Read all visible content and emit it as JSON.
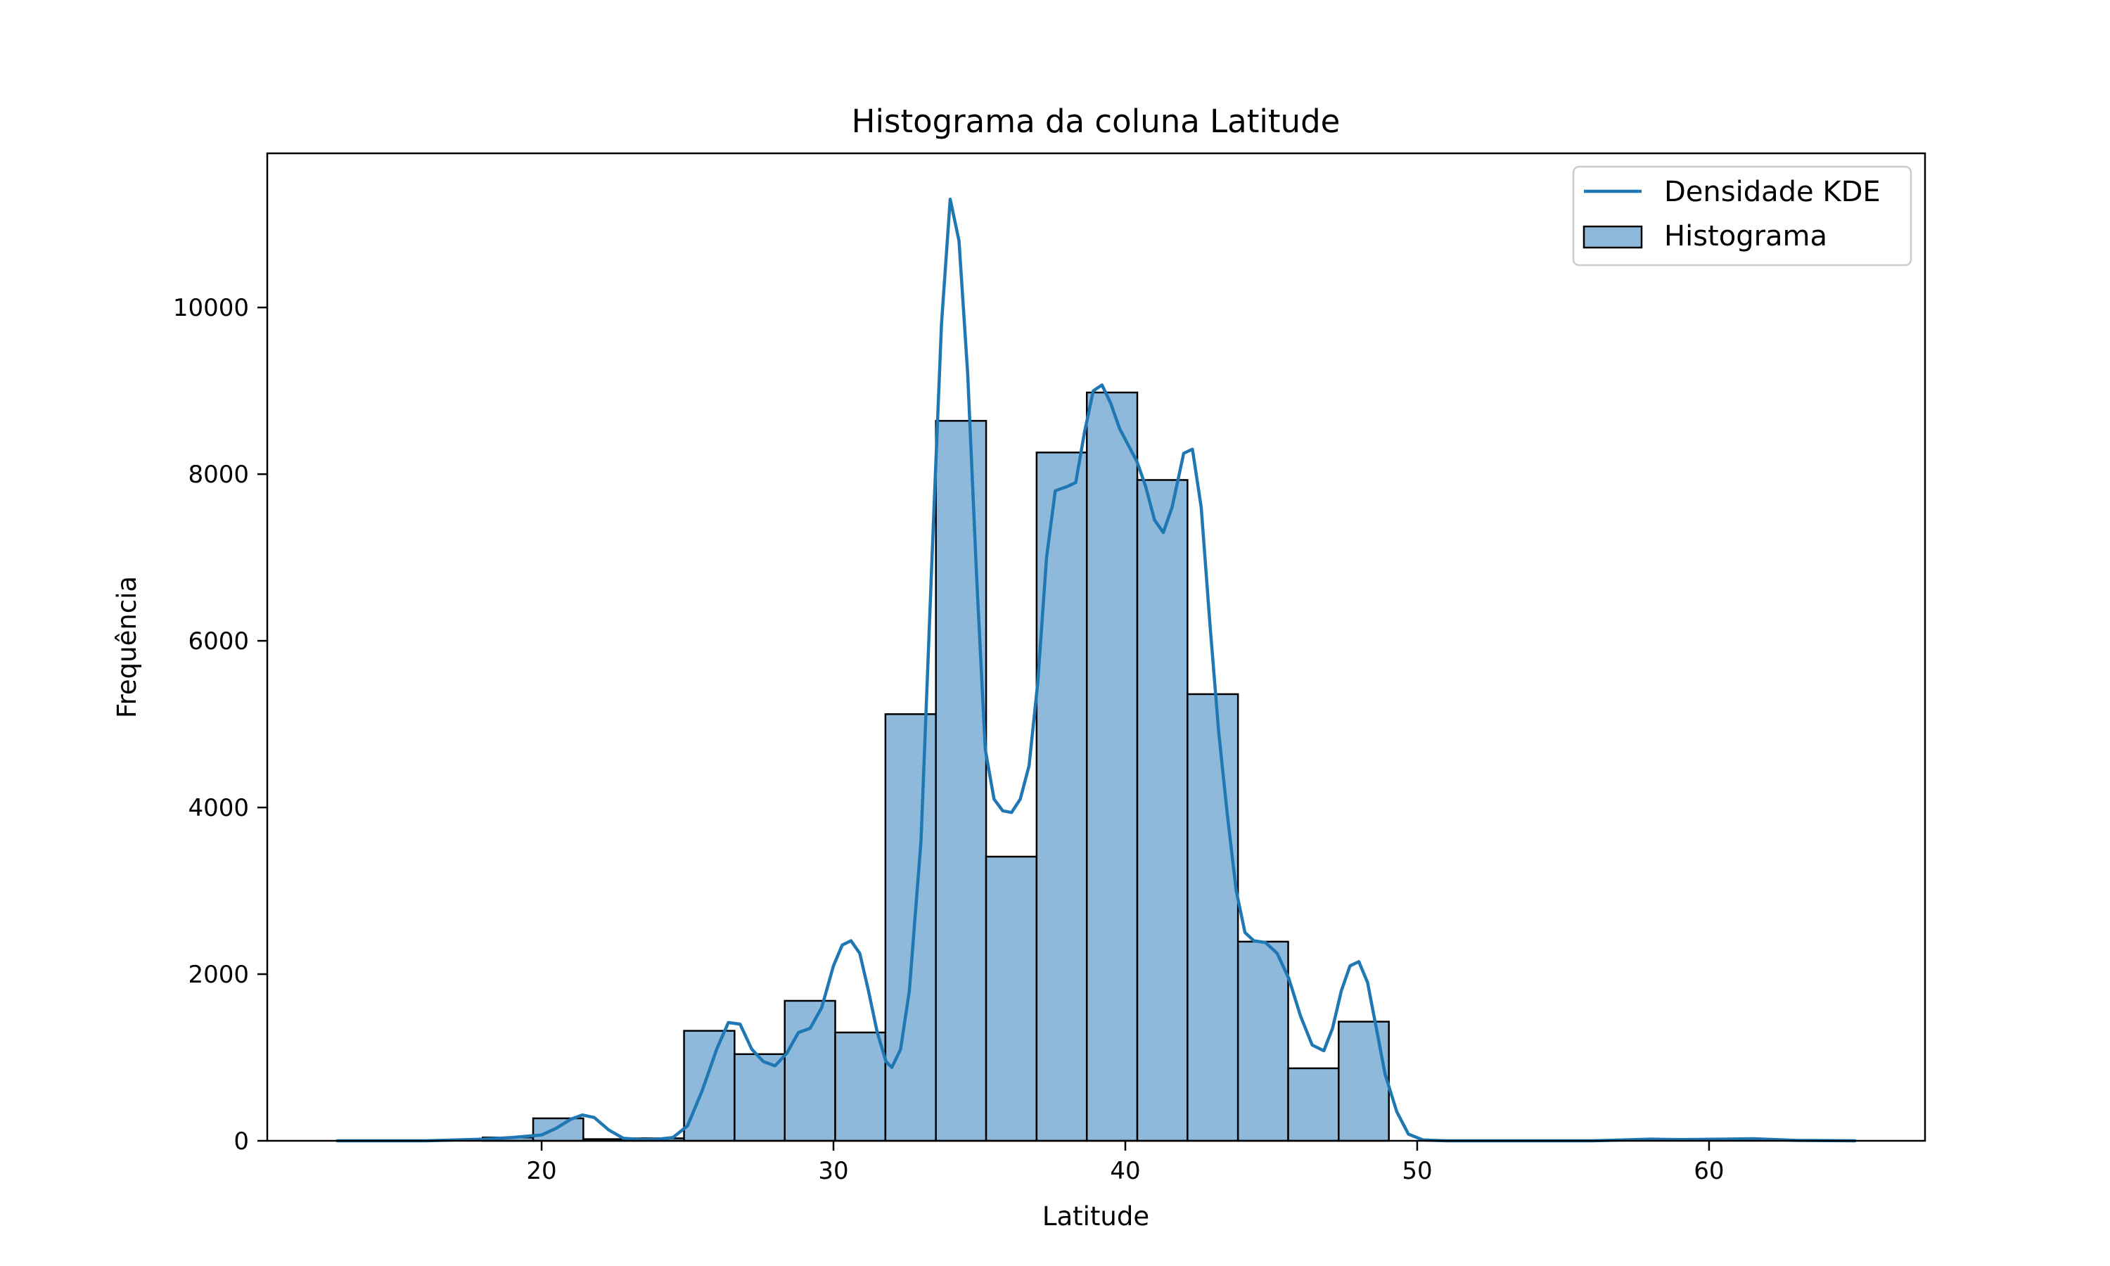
{
  "chart_data": {
    "type": "bar",
    "title": "Histograma da coluna Latitude",
    "xlabel": "Latitude",
    "ylabel": "Frequência",
    "xlim": [
      10.6,
      67.4
    ],
    "ylim": [
      0,
      11850
    ],
    "x_ticks": [
      20,
      30,
      40,
      50,
      60
    ],
    "y_ticks": [
      0,
      2000,
      4000,
      6000,
      8000,
      10000
    ],
    "grid": false,
    "legend_position": "top-right",
    "colors": {
      "bar_fill": "#8fb9db",
      "bar_edge": "#000000",
      "kde_line": "#1f77b4"
    },
    "series": [
      {
        "name": "Histograma",
        "type": "bar",
        "bin_edges": [
          17.98,
          19.71,
          21.43,
          23.16,
          24.88,
          26.61,
          28.33,
          30.06,
          31.78,
          33.51,
          35.23,
          36.96,
          38.68,
          40.41,
          42.13,
          43.86,
          45.58,
          47.31,
          49.03
        ],
        "values": [
          40,
          270,
          20,
          30,
          1320,
          1040,
          1680,
          1300,
          5120,
          8640,
          3410,
          8260,
          8980,
          7930,
          5360,
          2390,
          870,
          1430
        ]
      },
      {
        "name": "Densidade KDE",
        "type": "line",
        "points": [
          [
            13.0,
            0
          ],
          [
            16.0,
            0
          ],
          [
            18.0,
            20
          ],
          [
            19.0,
            40
          ],
          [
            20.0,
            70
          ],
          [
            20.5,
            150
          ],
          [
            21.0,
            260
          ],
          [
            21.4,
            310
          ],
          [
            21.8,
            280
          ],
          [
            22.3,
            130
          ],
          [
            22.8,
            30
          ],
          [
            23.5,
            15
          ],
          [
            24.0,
            20
          ],
          [
            24.5,
            40
          ],
          [
            25.0,
            180
          ],
          [
            25.5,
            600
          ],
          [
            26.0,
            1100
          ],
          [
            26.4,
            1420
          ],
          [
            26.8,
            1400
          ],
          [
            27.2,
            1100
          ],
          [
            27.6,
            950
          ],
          [
            28.0,
            900
          ],
          [
            28.4,
            1050
          ],
          [
            28.8,
            1300
          ],
          [
            29.2,
            1350
          ],
          [
            29.6,
            1600
          ],
          [
            30.0,
            2100
          ],
          [
            30.3,
            2350
          ],
          [
            30.6,
            2400
          ],
          [
            30.9,
            2250
          ],
          [
            31.2,
            1800
          ],
          [
            31.5,
            1300
          ],
          [
            31.8,
            950
          ],
          [
            32.0,
            880
          ],
          [
            32.3,
            1100
          ],
          [
            32.6,
            1800
          ],
          [
            33.0,
            3600
          ],
          [
            33.4,
            7200
          ],
          [
            33.7,
            9800
          ],
          [
            34.0,
            11300
          ],
          [
            34.3,
            10800
          ],
          [
            34.6,
            9200
          ],
          [
            34.9,
            6800
          ],
          [
            35.2,
            4700
          ],
          [
            35.5,
            4100
          ],
          [
            35.8,
            3960
          ],
          [
            36.1,
            3940
          ],
          [
            36.4,
            4100
          ],
          [
            36.7,
            4500
          ],
          [
            37.0,
            5500
          ],
          [
            37.3,
            7000
          ],
          [
            37.6,
            7800
          ],
          [
            38.0,
            7850
          ],
          [
            38.3,
            7900
          ],
          [
            38.6,
            8500
          ],
          [
            38.9,
            9000
          ],
          [
            39.2,
            9070
          ],
          [
            39.5,
            8850
          ],
          [
            39.8,
            8550
          ],
          [
            40.1,
            8350
          ],
          [
            40.4,
            8150
          ],
          [
            40.7,
            7850
          ],
          [
            41.0,
            7450
          ],
          [
            41.3,
            7300
          ],
          [
            41.6,
            7600
          ],
          [
            42.0,
            8250
          ],
          [
            42.3,
            8300
          ],
          [
            42.6,
            7600
          ],
          [
            42.9,
            6200
          ],
          [
            43.2,
            4900
          ],
          [
            43.5,
            3900
          ],
          [
            43.8,
            3000
          ],
          [
            44.1,
            2500
          ],
          [
            44.4,
            2400
          ],
          [
            44.8,
            2380
          ],
          [
            45.2,
            2250
          ],
          [
            45.6,
            1950
          ],
          [
            46.0,
            1500
          ],
          [
            46.4,
            1150
          ],
          [
            46.8,
            1080
          ],
          [
            47.1,
            1350
          ],
          [
            47.4,
            1800
          ],
          [
            47.7,
            2100
          ],
          [
            48.0,
            2150
          ],
          [
            48.3,
            1900
          ],
          [
            48.6,
            1350
          ],
          [
            48.9,
            800
          ],
          [
            49.3,
            350
          ],
          [
            49.7,
            80
          ],
          [
            50.2,
            10
          ],
          [
            51.0,
            0
          ],
          [
            56.0,
            0
          ],
          [
            58.0,
            20
          ],
          [
            59.0,
            15
          ],
          [
            60.5,
            20
          ],
          [
            61.5,
            25
          ],
          [
            63.0,
            5
          ],
          [
            65.0,
            0
          ]
        ]
      }
    ]
  }
}
